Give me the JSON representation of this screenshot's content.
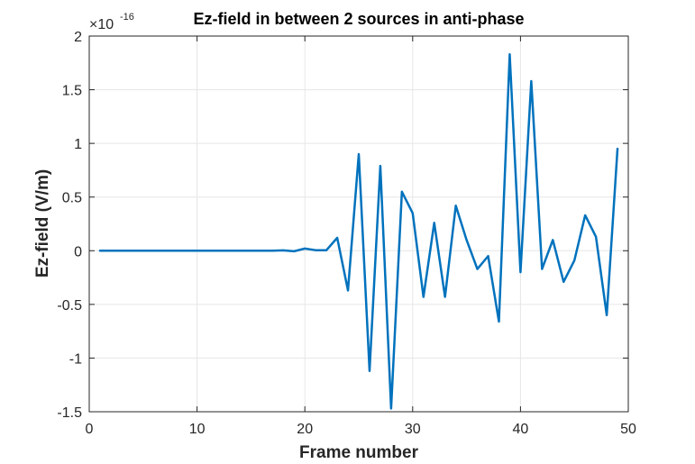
{
  "chart_data": {
    "type": "line",
    "title": "Ez-field in between 2 sources in anti-phase",
    "xlabel": "Frame number",
    "ylabel": "Ez-field (V/m)",
    "y_exponent_base": "×10",
    "y_exponent_power": "-16",
    "xlim": [
      0,
      50
    ],
    "ylim": [
      -1.5,
      2
    ],
    "x_ticks": [
      0,
      10,
      20,
      30,
      40,
      50
    ],
    "x_tick_labels": [
      "0",
      "10",
      "20",
      "30",
      "40",
      "50"
    ],
    "y_ticks": [
      -1.5,
      -1,
      -0.5,
      0,
      0.5,
      1,
      1.5,
      2
    ],
    "y_tick_labels": [
      "-1.5",
      "-1",
      "-0.5",
      "0",
      "0.5",
      "1",
      "1.5",
      "2"
    ],
    "grid": true,
    "series": [
      {
        "color": "#0072BD",
        "x": [
          1,
          2,
          3,
          4,
          5,
          6,
          7,
          8,
          9,
          10,
          11,
          12,
          13,
          14,
          15,
          16,
          17,
          18,
          19,
          20,
          21,
          22,
          23,
          24,
          25,
          26,
          27,
          28,
          29,
          30,
          31,
          32,
          33,
          34,
          35,
          36,
          37,
          38,
          39,
          40,
          41,
          42,
          43,
          44,
          45,
          46,
          47,
          48,
          49
        ],
        "y": [
          0,
          0,
          0,
          0,
          0,
          0,
          0,
          0,
          0,
          0,
          0,
          0,
          0,
          0,
          0,
          0,
          0,
          0.003,
          -0.005,
          0.02,
          0.005,
          0.005,
          0.12,
          -0.37,
          0.9,
          -1.12,
          0.79,
          -1.47,
          0.55,
          0.35,
          -0.43,
          0.26,
          -0.43,
          0.42,
          0.1,
          -0.17,
          -0.05,
          -0.66,
          1.83,
          -0.2,
          1.58,
          -0.17,
          0.1,
          -0.29,
          -0.09,
          0.33,
          0.13,
          -0.6,
          0.95
        ]
      }
    ]
  }
}
